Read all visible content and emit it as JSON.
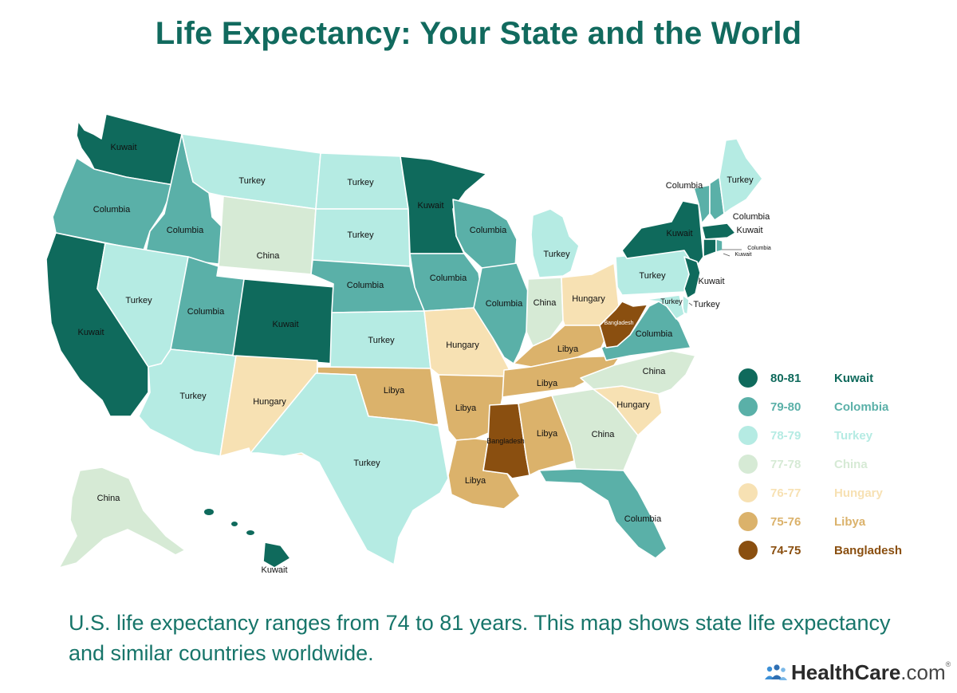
{
  "title": "Life Expectancy: Your State and the World",
  "caption": "U.S. life expectancy ranges from 74 to 81 years. This map shows state life expectancy and similar countries worldwide.",
  "brand": {
    "name": "HealthCare",
    "suffix": ".com",
    "mark": "®"
  },
  "legend": [
    {
      "range": "80-81",
      "country": "Kuwait",
      "color": "#0f6a5c"
    },
    {
      "range": "79-80",
      "country": "Colombia",
      "color": "#5ab0a8"
    },
    {
      "range": "78-79",
      "country": "Turkey",
      "color": "#b5ebe3"
    },
    {
      "range": "77-78",
      "country": "China",
      "color": "#d6ead5"
    },
    {
      "range": "76-77",
      "country": "Hungary",
      "color": "#f7e1b3"
    },
    {
      "range": "75-76",
      "country": "Libya",
      "color": "#dbb26b"
    },
    {
      "range": "74-75",
      "country": "Bangladesh",
      "color": "#8a4f10"
    }
  ],
  "states": [
    {
      "id": "WA",
      "country": "Kuwait"
    },
    {
      "id": "OR",
      "country": "Columbia"
    },
    {
      "id": "CA",
      "country": "Kuwait"
    },
    {
      "id": "ID",
      "country": "Columbia"
    },
    {
      "id": "NV",
      "country": "Turkey"
    },
    {
      "id": "MT",
      "country": "Turkey"
    },
    {
      "id": "WY",
      "country": "China"
    },
    {
      "id": "UT",
      "country": "Columbia"
    },
    {
      "id": "AZ",
      "country": "Turkey"
    },
    {
      "id": "CO",
      "country": "Kuwait"
    },
    {
      "id": "NM",
      "country": "Hungary"
    },
    {
      "id": "ND",
      "country": "Turkey"
    },
    {
      "id": "SD",
      "country": "Turkey"
    },
    {
      "id": "NE",
      "country": "Columbia"
    },
    {
      "id": "KS",
      "country": "Turkey"
    },
    {
      "id": "OK",
      "country": "Libya"
    },
    {
      "id": "TX",
      "country": "Turkey"
    },
    {
      "id": "MN",
      "country": "Kuwait"
    },
    {
      "id": "IA",
      "country": "Columbia"
    },
    {
      "id": "MO",
      "country": "Hungary"
    },
    {
      "id": "AR",
      "country": "Libya"
    },
    {
      "id": "LA",
      "country": "Libya"
    },
    {
      "id": "WI",
      "country": "Columbia"
    },
    {
      "id": "IL",
      "country": "Columbia"
    },
    {
      "id": "MI",
      "country": "Turkey"
    },
    {
      "id": "IN",
      "country": "China"
    },
    {
      "id": "OH",
      "country": "Hungary"
    },
    {
      "id": "KY",
      "country": "Libya"
    },
    {
      "id": "TN",
      "country": "Libya"
    },
    {
      "id": "MS",
      "country": "Bangladesh"
    },
    {
      "id": "AL",
      "country": "Libya"
    },
    {
      "id": "GA",
      "country": "China"
    },
    {
      "id": "FL",
      "country": "Columbia"
    },
    {
      "id": "SC",
      "country": "Hungary"
    },
    {
      "id": "NC",
      "country": "China"
    },
    {
      "id": "VA",
      "country": "Columbia"
    },
    {
      "id": "WV",
      "country": "Bangladesh"
    },
    {
      "id": "PA",
      "country": "Turkey"
    },
    {
      "id": "NY",
      "country": "Kuwait"
    },
    {
      "id": "NJ",
      "country": "Kuwait"
    },
    {
      "id": "DE",
      "country": "Turkey"
    },
    {
      "id": "MD",
      "country": "Turkey"
    },
    {
      "id": "VT",
      "country": "Columbia"
    },
    {
      "id": "NH",
      "country": "Columbia"
    },
    {
      "id": "ME",
      "country": "Turkey"
    },
    {
      "id": "MA",
      "country": "Kuwait"
    },
    {
      "id": "CT",
      "country": "Kuwait"
    },
    {
      "id": "RI",
      "country": "Columbia"
    },
    {
      "id": "AK",
      "country": "China"
    },
    {
      "id": "HI",
      "country": "Kuwait"
    }
  ]
}
